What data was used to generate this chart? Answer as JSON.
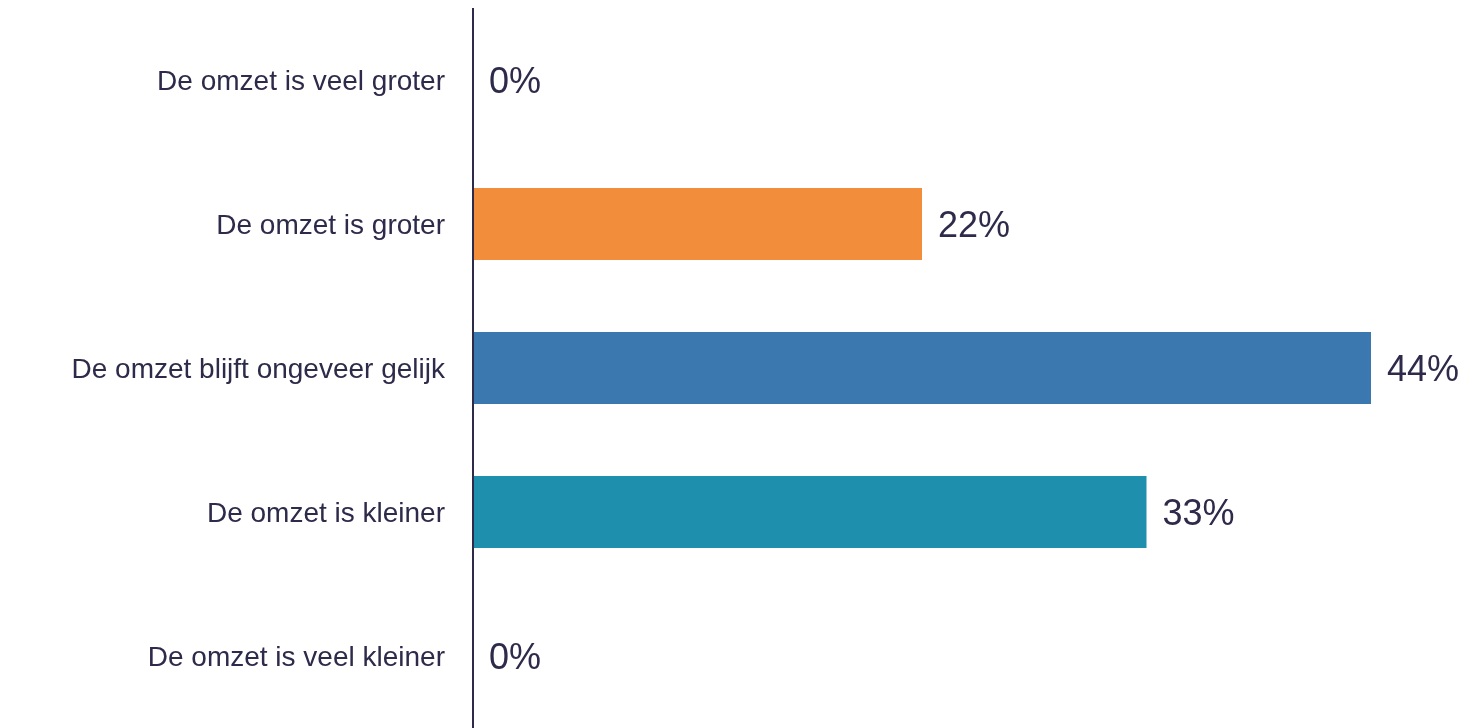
{
  "chart_data": {
    "type": "bar",
    "orientation": "horizontal",
    "categories": [
      "De omzet is veel groter",
      "De omzet is groter",
      "De omzet blijft ongeveer gelijk",
      "De omzet is kleiner",
      "De omzet is veel kleiner"
    ],
    "values": [
      0,
      22,
      44,
      33,
      0
    ],
    "colors": [
      "#f28e3b",
      "#f28e3b",
      "#3c78b0",
      "#1f8fae",
      "#1f8fae"
    ],
    "value_labels": [
      "0%",
      "22%",
      "44%",
      "33%",
      "0%"
    ]
  }
}
